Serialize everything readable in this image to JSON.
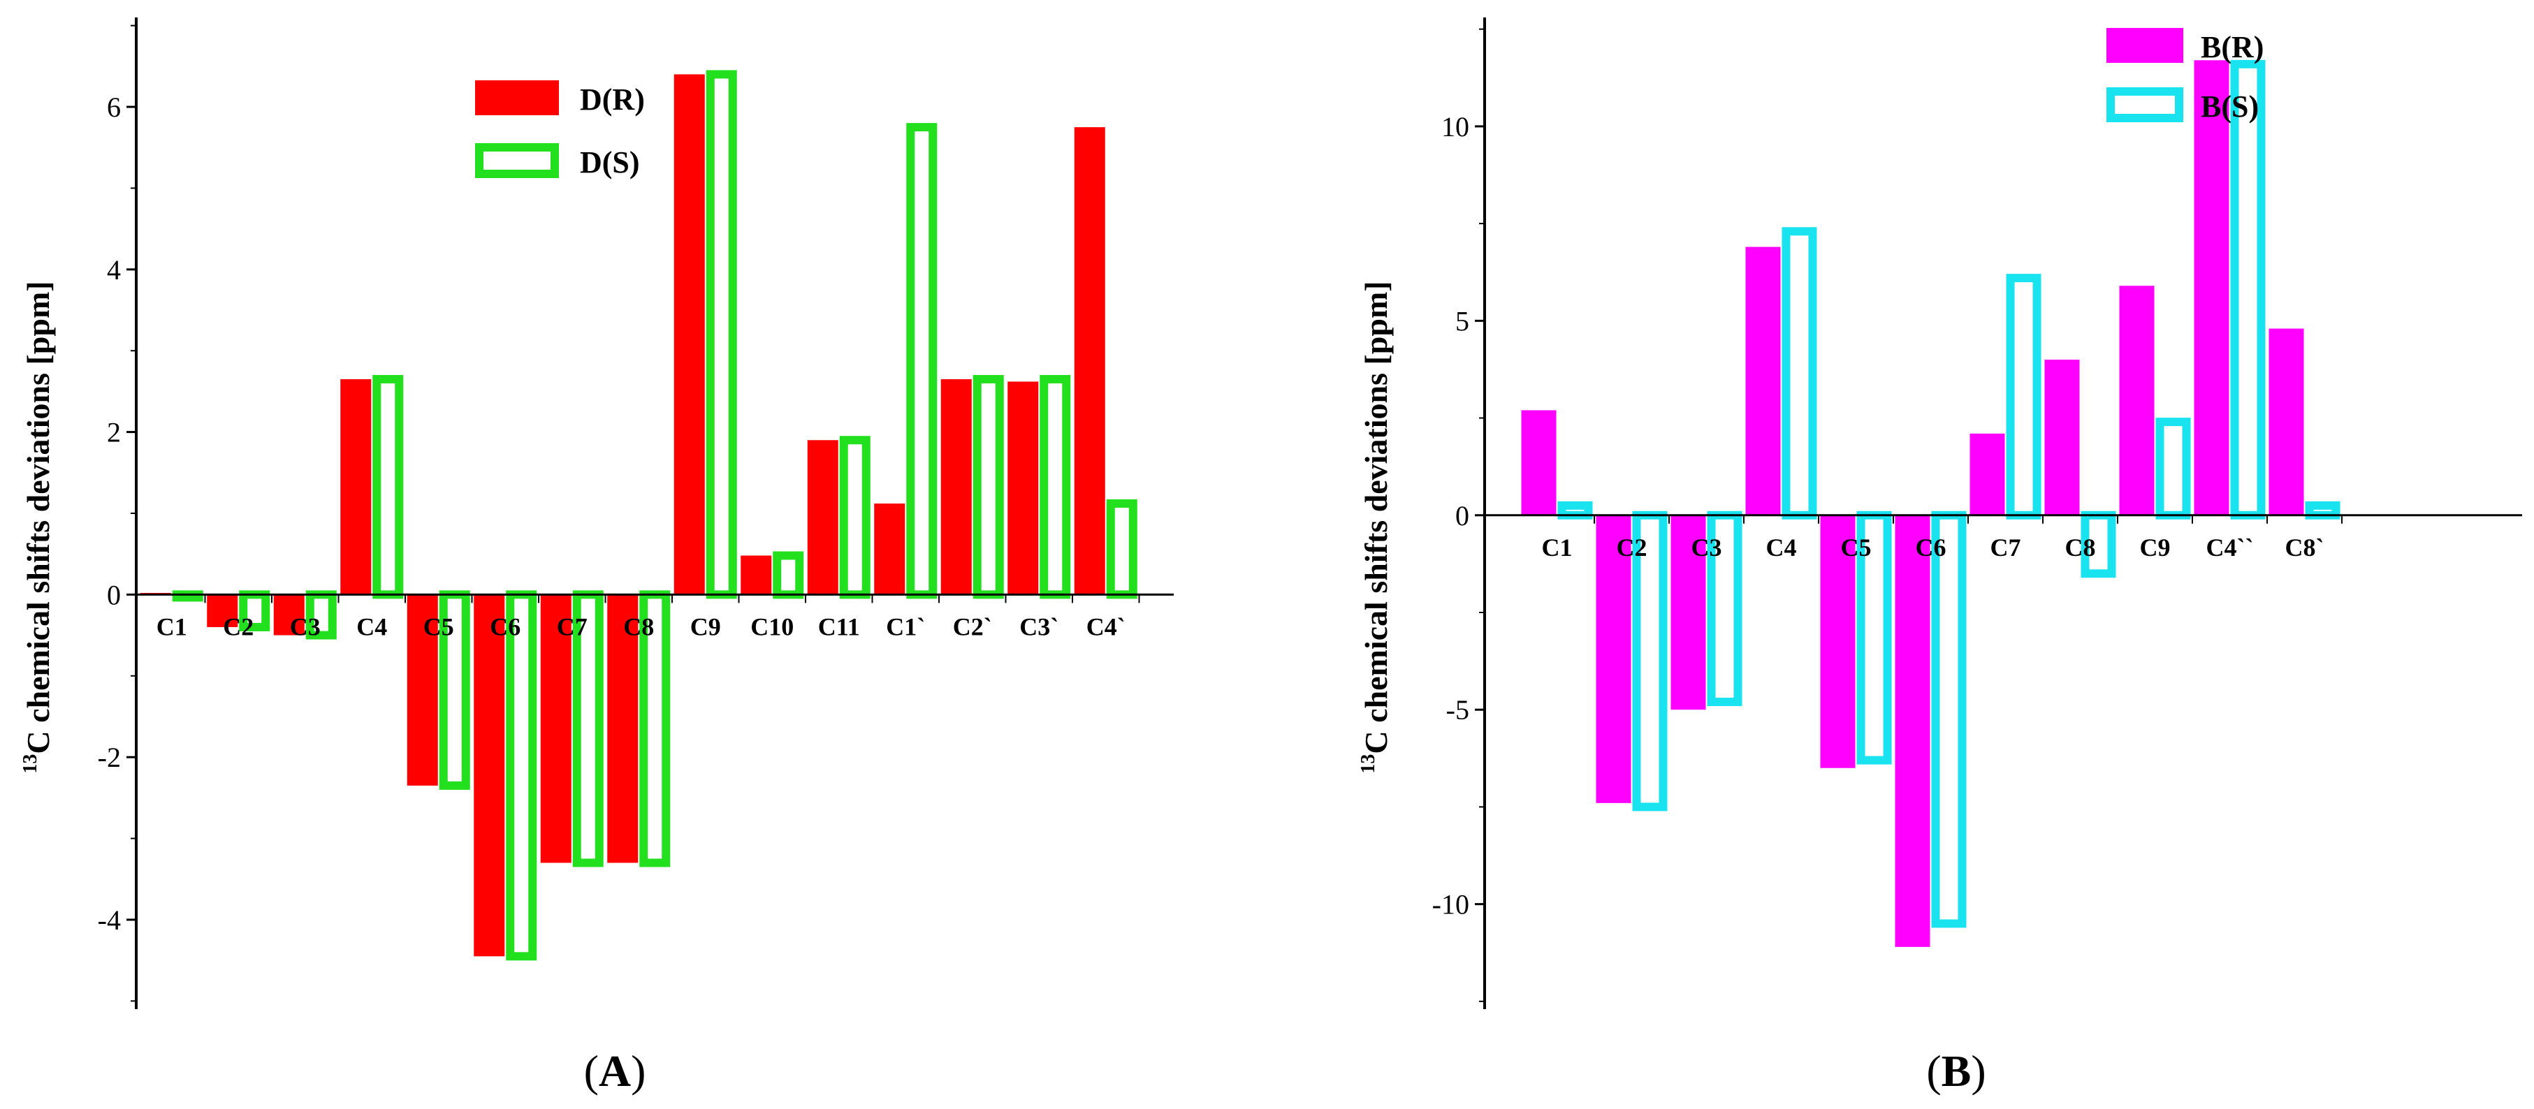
{
  "chart_data": [
    {
      "type": "bar",
      "panel_label": "A",
      "ylabel": "C chemical shifts deviations [ppm]",
      "ylabel_superscript": "13",
      "ylim": [
        -5.1,
        7.1
      ],
      "yticks": [
        -4,
        -2,
        0,
        2,
        4,
        6
      ],
      "categories": [
        "C1",
        "C2",
        "C3",
        "C4",
        "C5",
        "C6",
        "C7",
        "C8",
        "C9",
        "C10",
        "C11",
        "C1`",
        "C2`",
        "C3`",
        "C4`"
      ],
      "series": [
        {
          "name": "D(R)",
          "style": "filled",
          "color": "#ff0000",
          "values": [
            0.02,
            -0.4,
            -0.5,
            2.65,
            -2.35,
            -4.45,
            -3.3,
            -3.3,
            6.4,
            0.48,
            1.9,
            1.12,
            2.65,
            2.62,
            5.75
          ]
        },
        {
          "name": "D(S)",
          "style": "outline",
          "color": "#22e01e",
          "values": [
            0.0,
            -0.4,
            -0.5,
            2.65,
            -2.35,
            -4.45,
            -3.3,
            -3.3,
            6.4,
            0.48,
            1.9,
            5.75,
            2.65,
            2.65,
            1.12
          ]
        }
      ],
      "legend": "top-center"
    },
    {
      "type": "bar",
      "panel_label": "B",
      "ylabel": "C chemical shifts deviations [ppm]",
      "ylabel_superscript": "13",
      "ylim": [
        -12.7,
        12.8
      ],
      "yticks": [
        -10,
        -5,
        0,
        5,
        10
      ],
      "categories": [
        "C1",
        "C2",
        "C3",
        "C4",
        "C5",
        "C6",
        "C7",
        "C8",
        "C9",
        "C4``",
        "C8`"
      ],
      "series": [
        {
          "name": "B(R)",
          "style": "filled",
          "color": "#ff00ff",
          "values": [
            2.7,
            -7.4,
            -5.0,
            6.9,
            -6.5,
            -11.1,
            2.1,
            4.0,
            5.9,
            11.7,
            4.8
          ]
        },
        {
          "name": "B(S)",
          "style": "outline",
          "color": "#1ae3f0",
          "values": [
            0.25,
            -7.5,
            -4.8,
            7.3,
            -6.3,
            -10.5,
            6.1,
            -1.5,
            2.4,
            11.6,
            0.25
          ]
        }
      ],
      "legend": "top-right"
    }
  ]
}
